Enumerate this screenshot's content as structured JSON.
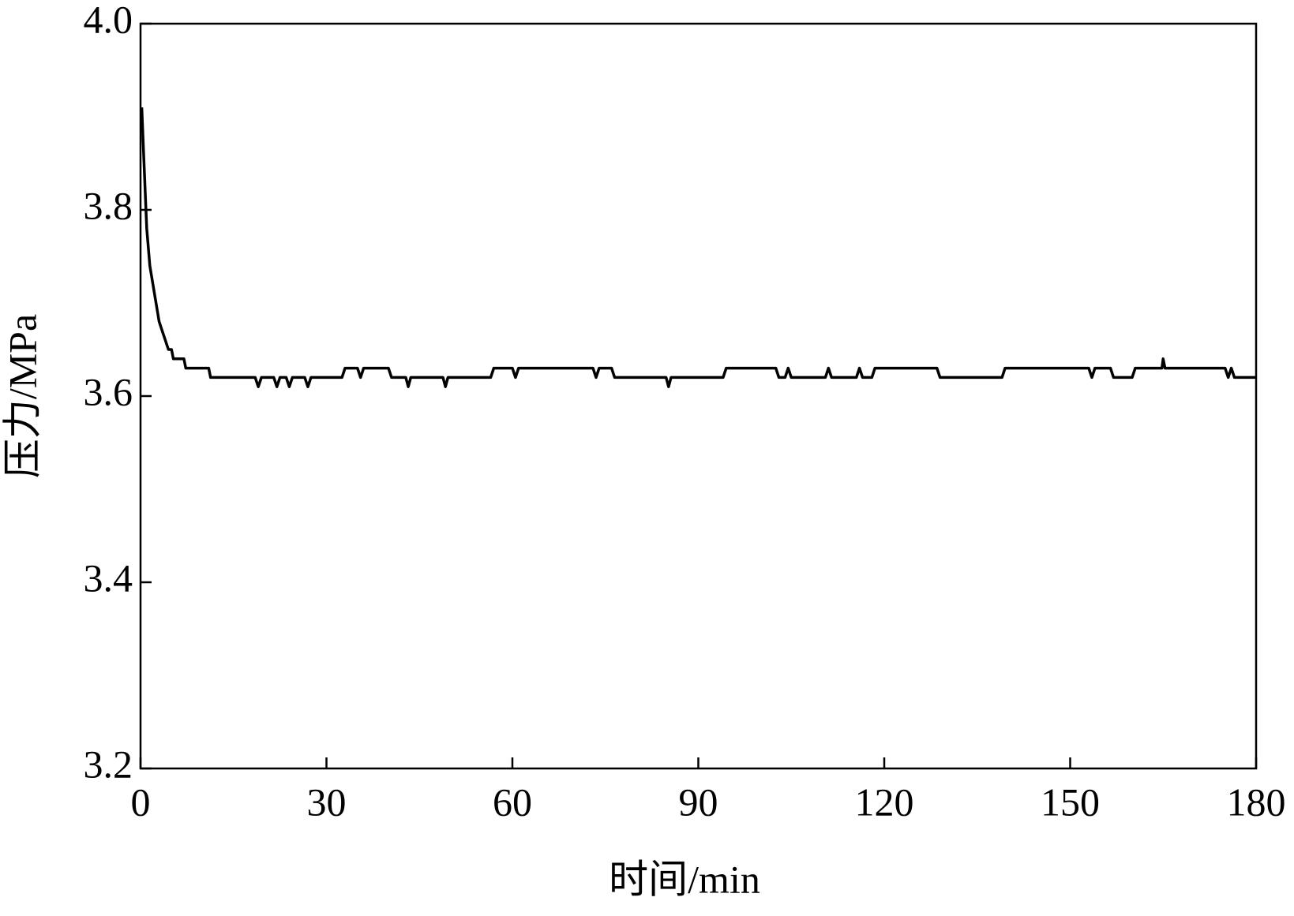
{
  "chart_data": {
    "type": "line",
    "xlabel": "时间/min",
    "ylabel": "压力/MPa",
    "color": "#000000",
    "x": [
      0.2,
      0.5,
      1,
      1.5,
      2,
      2.5,
      3,
      3.5,
      4,
      4.5,
      5,
      5.3,
      7,
      7.3,
      11,
      11.3,
      18.5,
      19,
      19.5,
      21.5,
      22,
      22.5,
      23.5,
      24,
      24.5,
      26.5,
      27,
      27.5,
      32.5,
      33,
      35,
      35.5,
      36,
      40,
      40.5,
      42.8,
      43.2,
      43.6,
      48.8,
      49.2,
      49.6,
      56.5,
      57,
      60,
      60.5,
      61,
      73,
      73.5,
      74,
      76,
      76.5,
      84.8,
      85.2,
      85.6,
      94,
      94.5,
      102.5,
      103,
      104,
      104.5,
      105,
      110.5,
      111,
      111.5,
      115.5,
      116,
      116.5,
      118,
      118.5,
      128.5,
      129,
      139,
      139.5,
      153,
      153.5,
      154,
      156.5,
      157,
      160,
      160.5,
      164.8,
      165,
      165.3,
      175,
      175.5,
      176,
      176.5,
      180
    ],
    "values": [
      3.91,
      3.86,
      3.78,
      3.74,
      3.72,
      3.7,
      3.68,
      3.67,
      3.66,
      3.65,
      3.65,
      3.64,
      3.64,
      3.63,
      3.63,
      3.62,
      3.62,
      3.61,
      3.62,
      3.62,
      3.61,
      3.62,
      3.62,
      3.61,
      3.62,
      3.62,
      3.61,
      3.62,
      3.62,
      3.63,
      3.63,
      3.62,
      3.63,
      3.63,
      3.62,
      3.62,
      3.61,
      3.62,
      3.62,
      3.61,
      3.62,
      3.62,
      3.63,
      3.63,
      3.62,
      3.63,
      3.63,
      3.62,
      3.63,
      3.63,
      3.62,
      3.62,
      3.61,
      3.62,
      3.62,
      3.63,
      3.63,
      3.62,
      3.62,
      3.63,
      3.62,
      3.62,
      3.63,
      3.62,
      3.62,
      3.63,
      3.62,
      3.62,
      3.63,
      3.63,
      3.62,
      3.62,
      3.63,
      3.63,
      3.62,
      3.63,
      3.63,
      3.62,
      3.62,
      3.63,
      3.63,
      3.64,
      3.63,
      3.63,
      3.62,
      3.63,
      3.62,
      3.62
    ],
    "xlim": [
      0,
      180
    ],
    "xticks": [
      0,
      30,
      60,
      90,
      120,
      150,
      180
    ],
    "ylim": [
      3.2,
      4.0
    ],
    "yticks": [
      3.2,
      3.4,
      3.6,
      3.8,
      {
        "value": 4.0,
        "label": "4.0"
      }
    ],
    "grid": false
  }
}
